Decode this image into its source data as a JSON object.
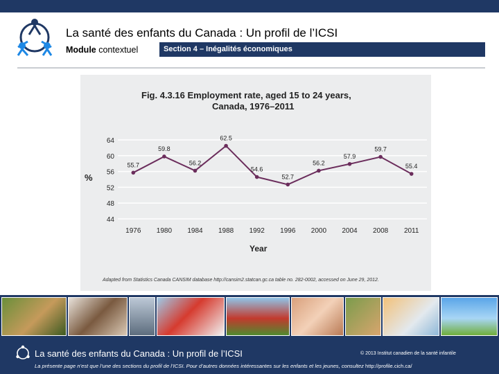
{
  "header": {
    "title": "La santé des enfants du Canada : Un profil de l’ICSI",
    "module_bold": "Module",
    "module_text": "contextuel",
    "section": "Section 4 – Inégalités économiques"
  },
  "chart_data": {
    "type": "line",
    "title_line1": "Fig. 4.3.16  Employment rate, aged 15 to 24 years,",
    "title_line2": "Canada, 1976–2011",
    "xlabel": "Year",
    "ylabel": "%",
    "categories": [
      "1976",
      "1980",
      "1984",
      "1988",
      "1992",
      "1996",
      "2000",
      "2004",
      "2008",
      "2011"
    ],
    "values": [
      55.7,
      59.8,
      56.2,
      62.5,
      54.6,
      52.7,
      56.2,
      57.9,
      59.7,
      55.4
    ],
    "data_labels": [
      "55.7",
      "59.8",
      "56.2",
      "62.5",
      "54.6",
      "52.7",
      "56.2",
      "57.9",
      "59.7",
      "55.4"
    ],
    "yticks": [
      "64",
      "60",
      "56",
      "52",
      "48",
      "44"
    ],
    "ytick_values": [
      64,
      60,
      56,
      52,
      48,
      44
    ],
    "ylim": [
      44,
      64
    ],
    "grid": true,
    "line_color": "#6b2d5c",
    "source": "Adapted from Statistics Canada CANSIM database http://cansim2.statcan.gc.ca table no. 282-0002, accessed on June 29, 2012."
  },
  "footer": {
    "title": "La santé des enfants du Canada : Un profil de l’ICSI",
    "copyright": "© 2013 Institut canadien de la santé infantile",
    "note": "La présente page n’est que l’une des sections du profil de l’ICSI. Pour d’autres données intéressantes sur les enfants et les jeunes, consultez",
    "url": "http://profile.cich.ca/"
  },
  "colors": {
    "brand_navy": "#1f3864",
    "panel": "#ecedee",
    "line": "#6b2d5c"
  }
}
